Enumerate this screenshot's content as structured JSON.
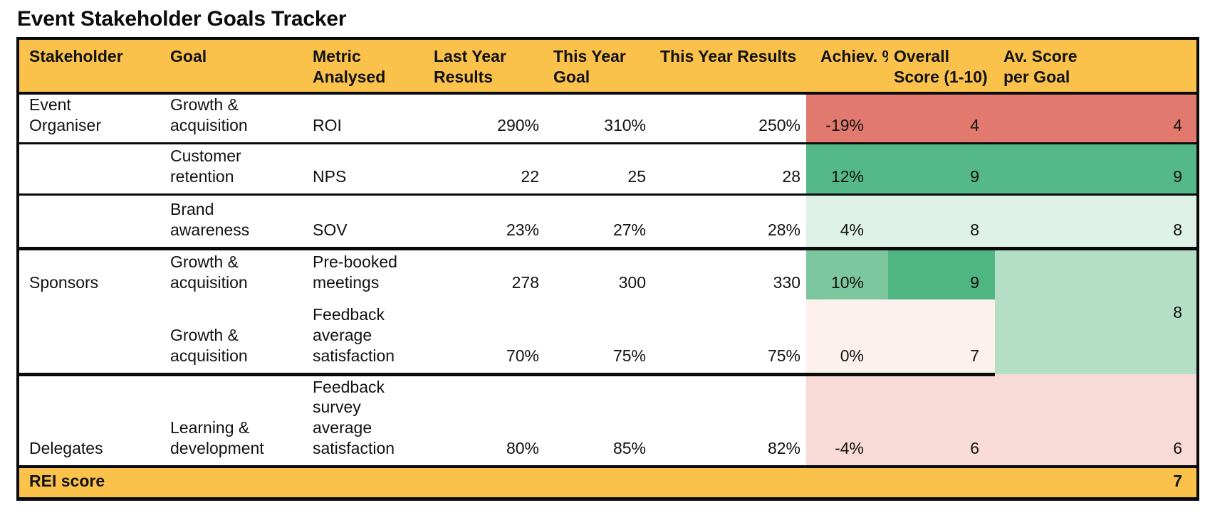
{
  "title": "Event Stakeholder Goals Tracker",
  "table": {
    "headers": {
      "stakeholder": "Stakeholder",
      "goal": "Goal",
      "metric": "Metric Analysed",
      "last_year_results": "Last Year Results",
      "this_year_goal": "This Year Goal",
      "this_year_results": "This Year Results",
      "achievement_pct": "Achiev. %",
      "overall_score": "Overall Score (1-10)",
      "av_score_per_goal": "Av. Score per Goal"
    },
    "rows": [
      {
        "stakeholder": "Event Organiser",
        "goal": "Growth & acquisition",
        "metric": "ROI",
        "last_year_results": "290%",
        "this_year_goal": "310%",
        "this_year_results": "250%",
        "achievement_pct": "-19%",
        "overall_score": "4",
        "av_score_per_goal": "4"
      },
      {
        "stakeholder": "",
        "goal": "Customer retention",
        "metric": "NPS",
        "last_year_results": "22",
        "this_year_goal": "25",
        "this_year_results": "28",
        "achievement_pct": "12%",
        "overall_score": "9",
        "av_score_per_goal": "9"
      },
      {
        "stakeholder": "",
        "goal": "Brand awareness",
        "metric": "SOV",
        "last_year_results": "23%",
        "this_year_goal": "27%",
        "this_year_results": "28%",
        "achievement_pct": "4%",
        "overall_score": "8",
        "av_score_per_goal": "8"
      },
      {
        "stakeholder": "Sponsors",
        "goal": "Growth & acquisition",
        "metric": "Pre-booked meetings",
        "last_year_results": "278",
        "this_year_goal": "300",
        "this_year_results": "330",
        "achievement_pct": "10%",
        "overall_score": "9",
        "av_score_per_goal": "8"
      },
      {
        "stakeholder": "",
        "goal": "Growth & acquisition",
        "metric": "Feedback average satisfaction",
        "last_year_results": "70%",
        "this_year_goal": "75%",
        "this_year_results": "75%",
        "achievement_pct": "0%",
        "overall_score": "7",
        "av_score_per_goal": ""
      },
      {
        "stakeholder": "Delegates",
        "goal": "Learning & development",
        "metric": "Feedback survey average satisfaction",
        "last_year_results": "80%",
        "this_year_goal": "85%",
        "this_year_results": "82%",
        "achievement_pct": "-4%",
        "overall_score": "6",
        "av_score_per_goal": "6"
      }
    ],
    "footer": {
      "label": "REI score",
      "value": "7"
    }
  },
  "colors": {
    "header_bg": "#FAC24B",
    "footer_bg": "#FAC24B",
    "negative_strong": "#E2796F",
    "negative_light": "#F8DBD6",
    "neutral_pale": "#FDF1EE",
    "positive_strong": "#55B987",
    "positive_deep": "#4FB681",
    "positive_medium": "#7CC79D",
    "positive_soft": "#B4DFC6",
    "positive_light": "#DFF2E7",
    "border": "#0A0A0A"
  }
}
